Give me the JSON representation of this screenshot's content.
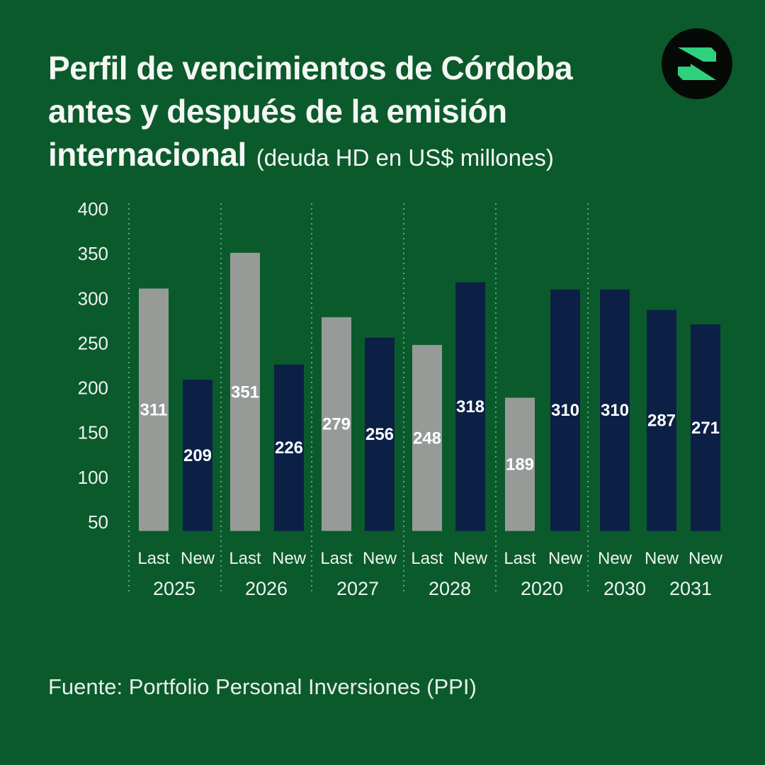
{
  "header": {
    "title_line1": "Perfil de vencimientos de Córdoba",
    "title_line2": "antes y después de la emisión",
    "title_line3": "internacional",
    "subtitle": "(deuda HD en US$ millones)"
  },
  "logo": {
    "icon": "stylized-z-logo",
    "colors": {
      "circle": "#050a07",
      "mark": "#2fd17f"
    }
  },
  "chart_data": {
    "type": "bar",
    "title": "Perfil de vencimientos de Córdoba antes y después de la emisión internacional",
    "ylabel": "",
    "ylim": [
      40,
      400
    ],
    "yticks": [
      400,
      350,
      300,
      250,
      200,
      150,
      100,
      50
    ],
    "grid": false,
    "colors": {
      "Last": "#969b98",
      "New": "#0c2046",
      "background": "#0b5a2c"
    },
    "groups": [
      {
        "year": "2025",
        "bars": [
          {
            "label": "Last",
            "value": 311
          },
          {
            "label": "New",
            "value": 209
          }
        ]
      },
      {
        "year": "2026",
        "bars": [
          {
            "label": "Last",
            "value": 351
          },
          {
            "label": "New",
            "value": 226
          }
        ]
      },
      {
        "year": "2027",
        "bars": [
          {
            "label": "Last",
            "value": 279
          },
          {
            "label": "New",
            "value": 256
          }
        ]
      },
      {
        "year": "2028",
        "bars": [
          {
            "label": "Last",
            "value": 248
          },
          {
            "label": "New",
            "value": 318
          }
        ]
      },
      {
        "year": "2020",
        "bars": [
          {
            "label": "Last",
            "value": 189
          },
          {
            "label": "New",
            "value": 310
          }
        ]
      },
      {
        "year": "2030",
        "bars": [
          {
            "label": "New",
            "value": 310
          },
          {
            "label": "New",
            "value": 287
          }
        ]
      },
      {
        "year": "2031",
        "bars": [
          {
            "label": "New",
            "value": 271
          }
        ]
      }
    ]
  },
  "footer": {
    "source": "Fuente: Portfolio Personal Inversiones (PPI)"
  }
}
